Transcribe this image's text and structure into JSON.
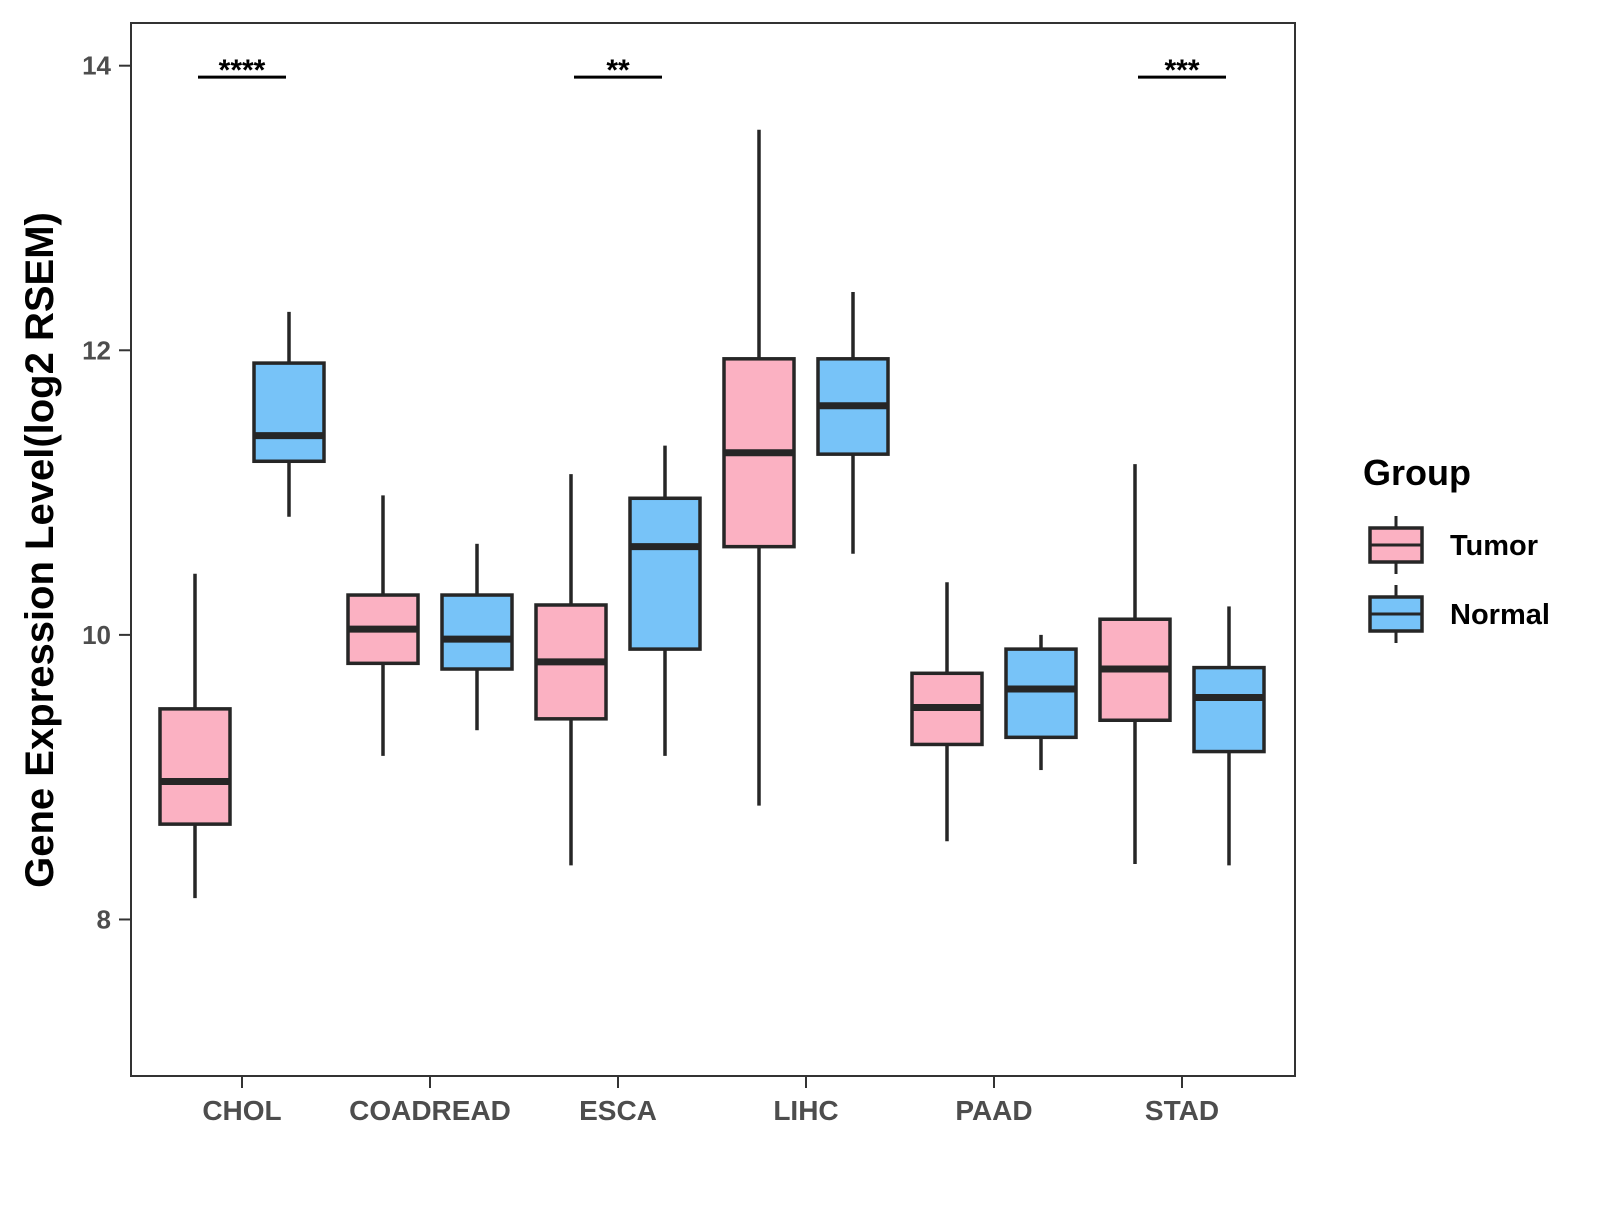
{
  "chart_data": {
    "type": "boxplot",
    "title": "",
    "xlabel": "",
    "ylabel": "Gene Expression Level(log2 RSEM)",
    "ylim": [
      6.9,
      14.3
    ],
    "yticks": [
      8,
      10,
      12,
      14
    ],
    "ytick_labels": [
      "8",
      "10",
      "12",
      "14"
    ],
    "categories": [
      "CHOL",
      "COADREAD",
      "ESCA",
      "LIHC",
      "PAAD",
      "STAD"
    ],
    "legend": {
      "title": "Group",
      "position": "right",
      "entries": [
        "Tumor",
        "Normal"
      ]
    },
    "series": [
      {
        "name": "Tumor",
        "color": "#fbb1c2",
        "boxes": [
          {
            "category": "CHOL",
            "min": 8.15,
            "q1": 8.67,
            "median": 8.97,
            "q3": 9.48,
            "max": 10.43
          },
          {
            "category": "COADREAD",
            "min": 9.15,
            "q1": 9.8,
            "median": 10.04,
            "q3": 10.28,
            "max": 10.98
          },
          {
            "category": "ESCA",
            "min": 8.38,
            "q1": 9.41,
            "median": 9.81,
            "q3": 10.21,
            "max": 11.13
          },
          {
            "category": "LIHC",
            "min": 8.8,
            "q1": 10.62,
            "median": 11.28,
            "q3": 11.94,
            "max": 13.55
          },
          {
            "category": "PAAD",
            "min": 8.55,
            "q1": 9.23,
            "median": 9.49,
            "q3": 9.73,
            "max": 10.37
          },
          {
            "category": "STAD",
            "min": 8.39,
            "q1": 9.4,
            "median": 9.76,
            "q3": 10.11,
            "max": 11.2
          }
        ]
      },
      {
        "name": "Normal",
        "color": "#77c3f8",
        "boxes": [
          {
            "category": "CHOL",
            "min": 10.83,
            "q1": 11.22,
            "median": 11.4,
            "q3": 11.91,
            "max": 12.27
          },
          {
            "category": "COADREAD",
            "min": 9.33,
            "q1": 9.76,
            "median": 9.97,
            "q3": 10.28,
            "max": 10.64
          },
          {
            "category": "ESCA",
            "min": 9.15,
            "q1": 9.9,
            "median": 10.62,
            "q3": 10.96,
            "max": 11.33
          },
          {
            "category": "LIHC",
            "min": 10.57,
            "q1": 11.27,
            "median": 11.61,
            "q3": 11.94,
            "max": 12.41
          },
          {
            "category": "PAAD",
            "min": 9.05,
            "q1": 9.28,
            "median": 9.62,
            "q3": 9.9,
            "max": 10.0
          },
          {
            "category": "STAD",
            "min": 8.38,
            "q1": 9.18,
            "median": 9.56,
            "q3": 9.77,
            "max": 10.2
          }
        ]
      }
    ],
    "significance": [
      {
        "category": "CHOL",
        "label": "****",
        "y": 13.92
      },
      {
        "category": "ESCA",
        "label": "**",
        "y": 13.92
      },
      {
        "category": "STAD",
        "label": "***",
        "y": 13.92
      }
    ],
    "colors": {
      "tumor": "#fbb1c2",
      "normal": "#77c3f8",
      "stroke": "#262626",
      "axis": "#333333",
      "tick_text": "#4d4d4d"
    }
  }
}
